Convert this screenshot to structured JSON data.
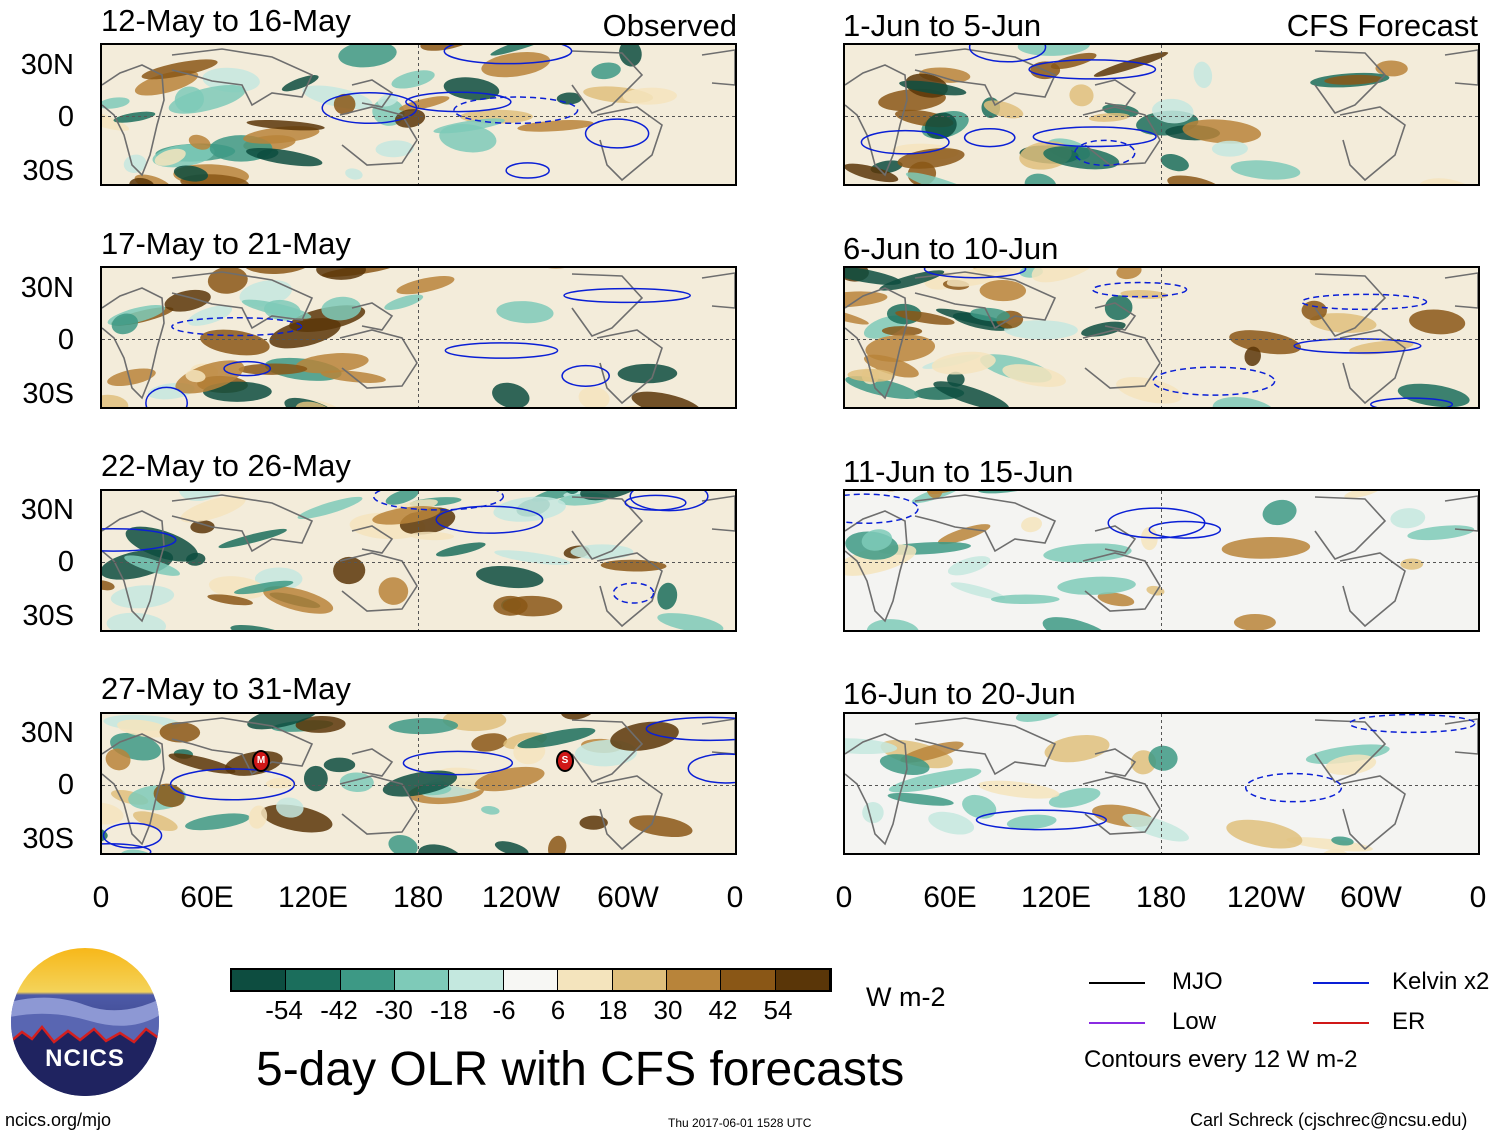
{
  "panels": {
    "observed_header": "Observed",
    "forecast_header": "CFS Forecast",
    "observed": [
      {
        "title": "12-May to 16-May"
      },
      {
        "title": "17-May to 21-May"
      },
      {
        "title": "22-May to 26-May"
      },
      {
        "title": "27-May to 31-May"
      }
    ],
    "forecast": [
      {
        "title": "1-Jun to 5-Jun"
      },
      {
        "title": "6-Jun to 10-Jun"
      },
      {
        "title": "11-Jun to 15-Jun"
      },
      {
        "title": "16-Jun to 20-Jun"
      }
    ]
  },
  "axes": {
    "lat_labels": [
      "30N",
      "0",
      "30S"
    ],
    "lon_labels": [
      "0",
      "60E",
      "120E",
      "180",
      "120W",
      "60W",
      "0"
    ]
  },
  "storm_markers": [
    "M",
    "S"
  ],
  "colorbar": {
    "ticks": [
      "-54",
      "-42",
      "-30",
      "-18",
      "-6",
      "6",
      "18",
      "30",
      "42",
      "54"
    ],
    "colors": [
      "#0d4d40",
      "#1b6e5c",
      "#3d9985",
      "#7ecab8",
      "#c4e8df",
      "#f7f7f4",
      "#f4e4bd",
      "#dfbf7c",
      "#b8843a",
      "#8a5716",
      "#5a3608"
    ],
    "unit": "W m-2"
  },
  "legend": {
    "items": [
      {
        "label": "MJO",
        "color": "#000000"
      },
      {
        "label": "Kelvin x2",
        "color": "#0a1fd6"
      },
      {
        "label": "Low",
        "color": "#8a2be2"
      },
      {
        "label": "ER",
        "color": "#d01818"
      }
    ],
    "note": "Contours every 12 W m-2"
  },
  "main_title": "5-day OLR with CFS forecasts",
  "logo_text": "NCICS",
  "footer": {
    "url": "ncics.org/mjo",
    "timestamp": "Thu 2017-06-01 1528 UTC",
    "credit": "Carl Schreck (cjschrec@ncsu.edu)"
  }
}
